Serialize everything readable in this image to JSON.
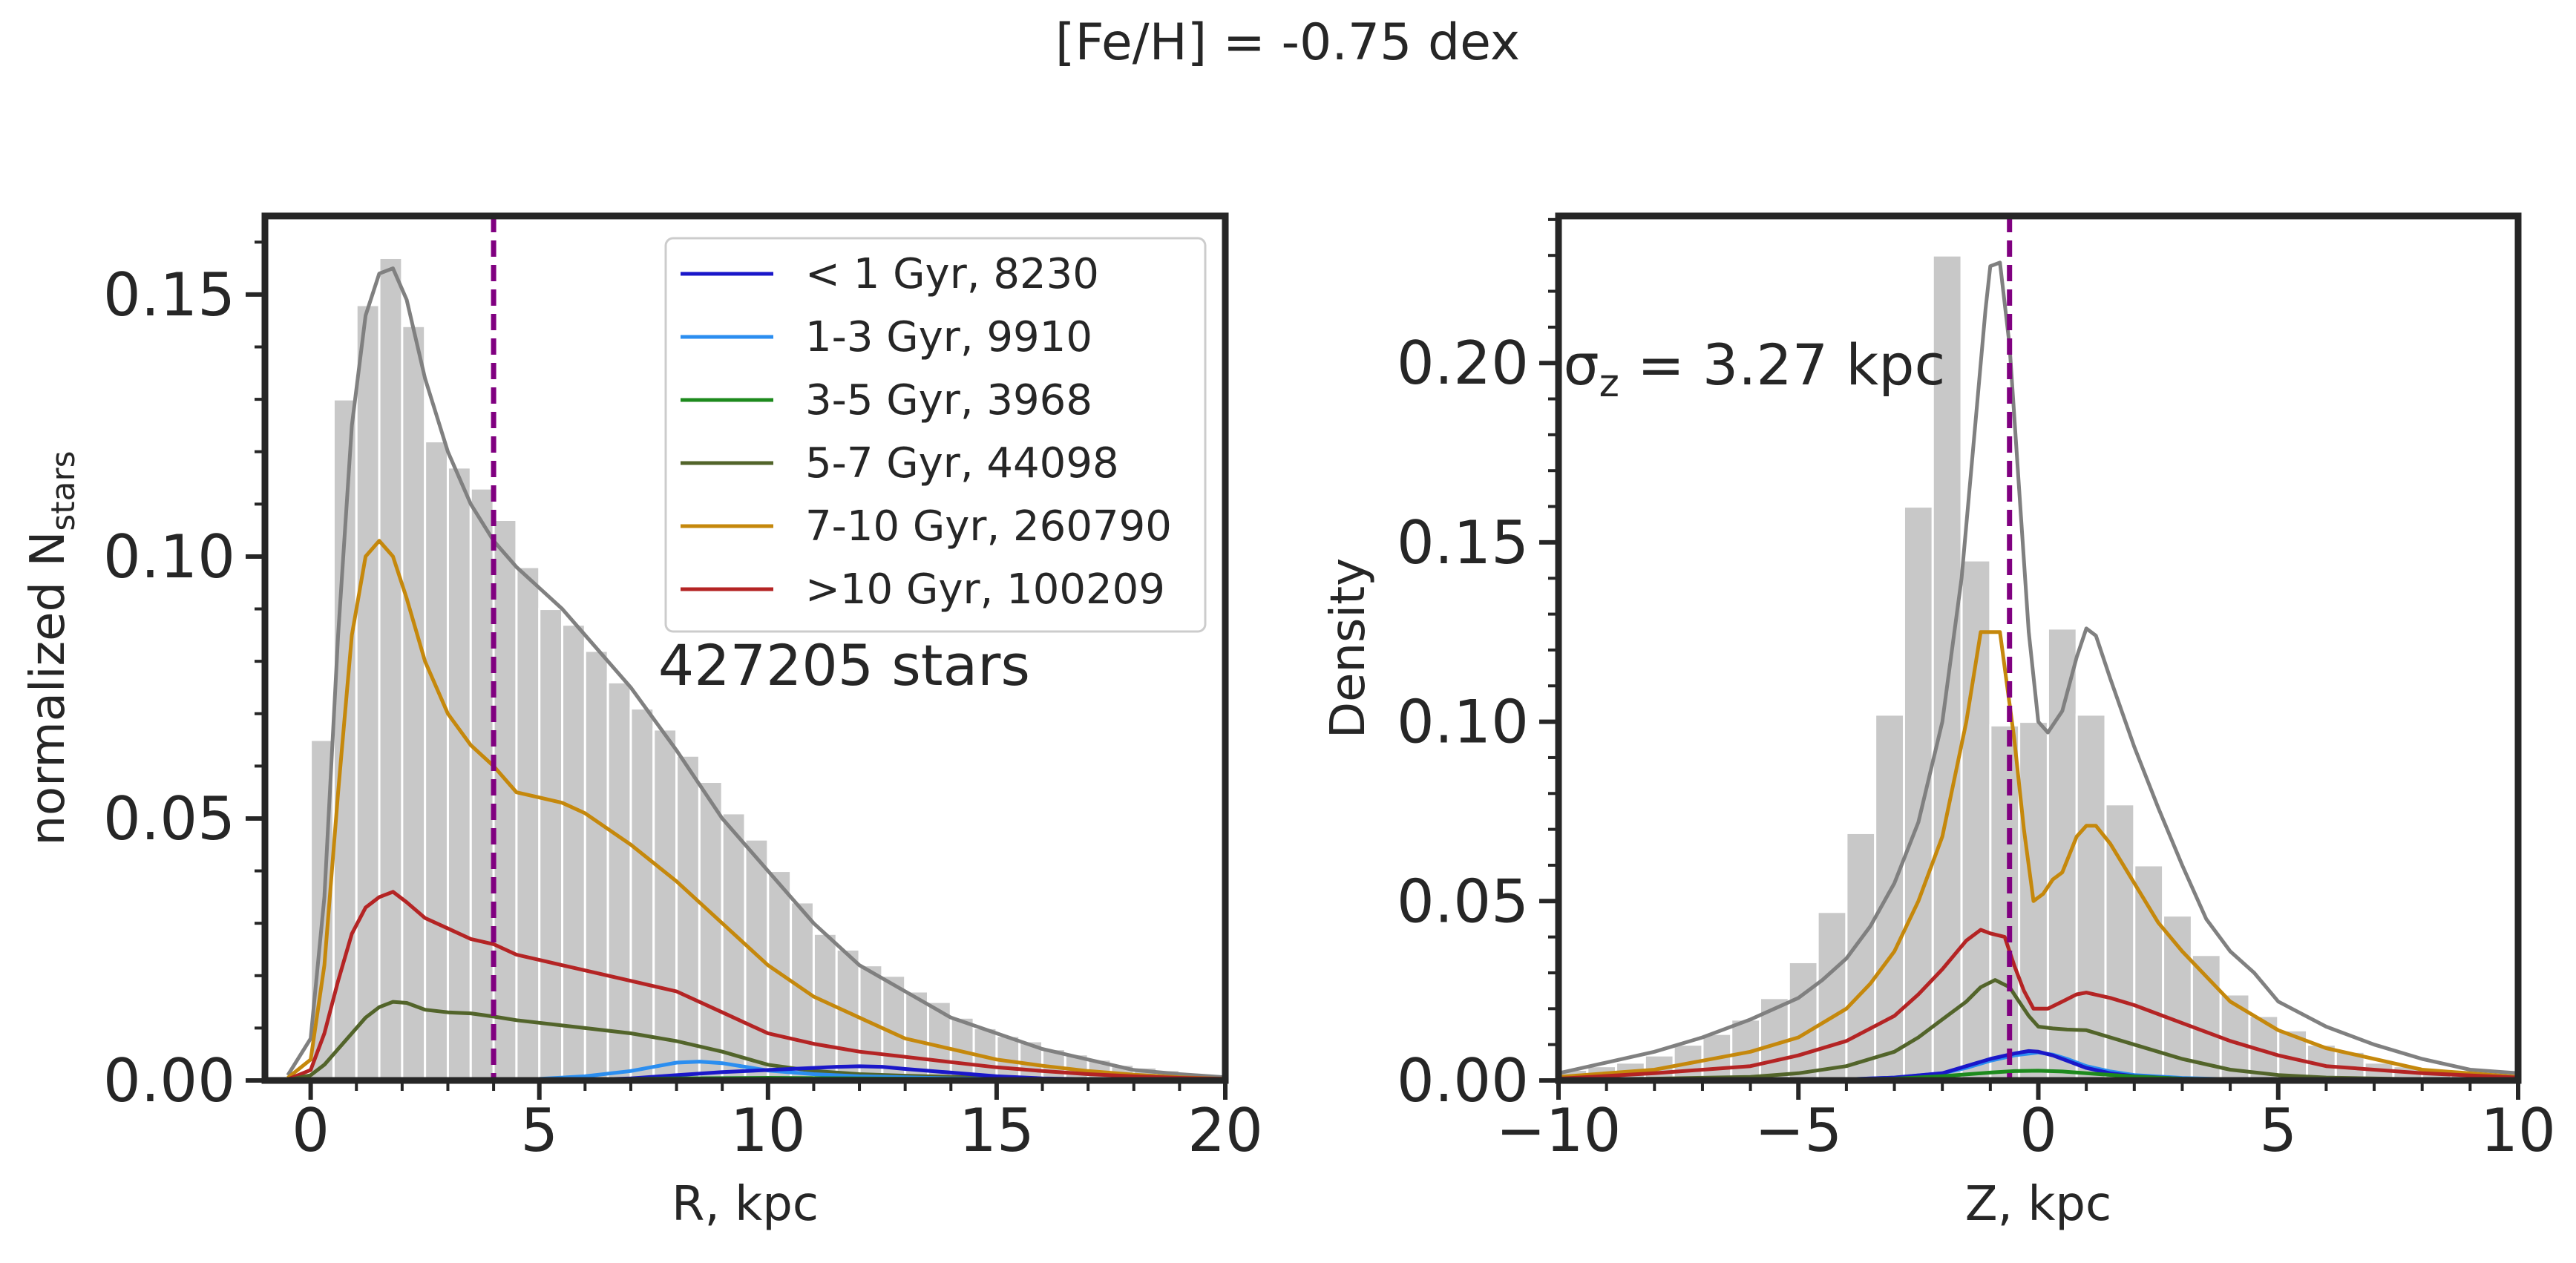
{
  "figure": {
    "suptitle": "[Fe/H] = -0.75 dex"
  },
  "chart_data": [
    {
      "type": "histogram",
      "xlabel": "R, kpc",
      "ylabel_main": "normalized N",
      "ylabel_sub": "stars",
      "xlim": [
        -1,
        20
      ],
      "ylim": [
        0,
        0.165
      ],
      "xticks": [
        0,
        5,
        10,
        15,
        20
      ],
      "yticks": [
        0.0,
        0.05,
        0.1,
        0.15
      ],
      "ytick_labels": [
        "0.00",
        "0.05",
        "0.10",
        "0.15"
      ],
      "xminor": [
        1,
        2,
        3,
        4,
        6,
        7,
        8,
        9,
        11,
        12,
        13,
        14,
        16,
        17,
        18,
        19
      ],
      "yminor": [
        0.01,
        0.02,
        0.03,
        0.04,
        0.06,
        0.07,
        0.08,
        0.09,
        0.11,
        0.12,
        0.13,
        0.14,
        0.16
      ],
      "vline": 4.0,
      "annotation": "427205 stars",
      "annotation_at": [
        7.6,
        0.0755
      ],
      "bin_edges": [
        0,
        0.5,
        1.0,
        1.5,
        2.0,
        2.5,
        3.0,
        3.5,
        4.0,
        4.5,
        5.0,
        5.5,
        6.0,
        6.5,
        7.0,
        7.5,
        8.0,
        8.5,
        9.0,
        9.5,
        10.0,
        10.5,
        11.0,
        11.5,
        12.0,
        12.5,
        13.0,
        13.5,
        14.0,
        14.5,
        15.0,
        15.5,
        16.0,
        16.5,
        17.0,
        17.5,
        18.0,
        18.5,
        19.0,
        19.5,
        20.0
      ],
      "hist_values": [
        0.065,
        0.13,
        0.148,
        0.157,
        0.144,
        0.122,
        0.117,
        0.113,
        0.107,
        0.098,
        0.09,
        0.087,
        0.082,
        0.076,
        0.071,
        0.067,
        0.062,
        0.057,
        0.051,
        0.046,
        0.04,
        0.034,
        0.028,
        0.025,
        0.022,
        0.02,
        0.017,
        0.015,
        0.012,
        0.01,
        0.0085,
        0.0075,
        0.006,
        0.005,
        0.004,
        0.003,
        0.0025,
        0.002,
        0.0015,
        0.001
      ],
      "legend": {
        "placement": "top-right",
        "entries": [
          {
            "label": "< 1 Gyr, 8230",
            "color": "#1a17c9"
          },
          {
            "label": "1-3 Gyr, 9910",
            "color": "#2b8ef0"
          },
          {
            "label": "3-5 Gyr, 3968",
            "color": "#1d8a1d"
          },
          {
            "label": "5-7 Gyr, 44098",
            "color": "#52642a"
          },
          {
            "label": "7-10 Gyr, 260790",
            "color": "#c5880c"
          },
          {
            "label": ">10 Gyr, 100209",
            "color": "#b42424"
          }
        ]
      },
      "series": [
        {
          "name": "all",
          "color": "#808080",
          "x": [
            -0.5,
            0,
            0.3,
            0.6,
            0.9,
            1.2,
            1.5,
            1.8,
            2.1,
            2.5,
            3.0,
            3.5,
            4.0,
            4.5,
            5.0,
            5.5,
            6.0,
            7.0,
            8.0,
            9.0,
            10.0,
            11.0,
            12.0,
            13.0,
            14.0,
            15.0,
            16.0,
            17.0,
            18.0,
            19.0,
            20.0
          ],
          "y": [
            0.001,
            0.008,
            0.035,
            0.085,
            0.125,
            0.146,
            0.154,
            0.155,
            0.149,
            0.134,
            0.12,
            0.11,
            0.103,
            0.098,
            0.094,
            0.09,
            0.085,
            0.075,
            0.063,
            0.05,
            0.04,
            0.03,
            0.022,
            0.017,
            0.012,
            0.009,
            0.006,
            0.004,
            0.002,
            0.0012,
            0.0006
          ]
        },
        {
          "name": "7-10 Gyr",
          "color": "#c5880c",
          "x": [
            -0.5,
            0,
            0.3,
            0.6,
            0.9,
            1.2,
            1.5,
            1.8,
            2.1,
            2.5,
            3.0,
            3.5,
            4.0,
            4.5,
            5.0,
            5.5,
            6.0,
            7.0,
            8.0,
            9.0,
            10.0,
            11.0,
            12.0,
            13.0,
            14.0,
            15.0,
            16.0,
            17.0,
            18.0,
            19.0,
            20.0
          ],
          "y": [
            0.0005,
            0.004,
            0.022,
            0.055,
            0.085,
            0.1,
            0.103,
            0.1,
            0.092,
            0.08,
            0.07,
            0.064,
            0.06,
            0.055,
            0.054,
            0.053,
            0.051,
            0.045,
            0.038,
            0.03,
            0.022,
            0.016,
            0.012,
            0.008,
            0.006,
            0.004,
            0.0028,
            0.0018,
            0.0011,
            0.0006,
            0.0003
          ]
        },
        {
          "name": ">10 Gyr",
          "color": "#b42424",
          "x": [
            -0.5,
            0,
            0.3,
            0.6,
            0.9,
            1.2,
            1.5,
            1.8,
            2.1,
            2.5,
            3.0,
            3.5,
            4.0,
            4.5,
            5.0,
            5.5,
            6.0,
            7.0,
            8.0,
            9.0,
            10.0,
            11.0,
            12.0,
            13.0,
            14.0,
            15.0,
            16.0,
            17.0,
            18.0,
            19.0,
            20.0
          ],
          "y": [
            0.0002,
            0.002,
            0.009,
            0.019,
            0.028,
            0.033,
            0.035,
            0.036,
            0.034,
            0.031,
            0.029,
            0.027,
            0.026,
            0.024,
            0.023,
            0.022,
            0.021,
            0.019,
            0.017,
            0.013,
            0.009,
            0.007,
            0.0055,
            0.0045,
            0.0035,
            0.0025,
            0.0018,
            0.0012,
            0.0008,
            0.0005,
            0.0003
          ]
        },
        {
          "name": "5-7 Gyr",
          "color": "#52642a",
          "x": [
            -0.5,
            0,
            0.3,
            0.6,
            0.9,
            1.2,
            1.5,
            1.8,
            2.1,
            2.5,
            3.0,
            3.5,
            4.0,
            4.5,
            5.0,
            5.5,
            6.0,
            7.0,
            8.0,
            9.0,
            10.0,
            11.0,
            12.0,
            13.0,
            14.0,
            15.0,
            16.0,
            17.0,
            18.0,
            19.0,
            20.0
          ],
          "y": [
            0.0001,
            0.001,
            0.003,
            0.006,
            0.009,
            0.012,
            0.014,
            0.015,
            0.0148,
            0.0135,
            0.013,
            0.0128,
            0.0122,
            0.0115,
            0.011,
            0.0105,
            0.01,
            0.009,
            0.0075,
            0.0055,
            0.003,
            0.0018,
            0.0012,
            0.0009,
            0.0007,
            0.0005,
            0.0003,
            0.0002,
            0.0001,
            0.0001,
            0.0001
          ]
        },
        {
          "name": "1-3 Gyr",
          "color": "#2b8ef0",
          "x": [
            -0.5,
            0,
            2,
            4,
            5,
            6,
            7,
            7.5,
            8,
            8.5,
            9,
            9.5,
            10,
            11,
            12,
            13,
            14,
            15,
            16,
            18,
            20
          ],
          "y": [
            0,
            0,
            0,
            0.0001,
            0.0003,
            0.0008,
            0.0018,
            0.0026,
            0.0034,
            0.0036,
            0.0033,
            0.0026,
            0.0019,
            0.0012,
            0.0008,
            0.0006,
            0.0004,
            0.0003,
            0.0002,
            0.0001,
            0
          ]
        },
        {
          "name": "< 1 Gyr",
          "color": "#1a17c9",
          "x": [
            -0.5,
            0,
            4,
            6,
            7,
            8,
            9,
            10,
            10.5,
            11,
            11.5,
            12,
            12.5,
            13,
            14,
            15,
            16,
            18,
            20
          ],
          "y": [
            0,
            0,
            0,
            0.0001,
            0.0004,
            0.001,
            0.0016,
            0.002,
            0.0022,
            0.0024,
            0.0026,
            0.0027,
            0.0026,
            0.0022,
            0.0015,
            0.0008,
            0.0004,
            0.0001,
            0
          ]
        },
        {
          "name": "3-5 Gyr",
          "color": "#1d8a1d",
          "x": [
            -0.5,
            0,
            4,
            6,
            8,
            10,
            12,
            14,
            16,
            18,
            20
          ],
          "y": [
            0,
            0,
            0.0001,
            0.0002,
            0.0004,
            0.0005,
            0.0004,
            0.0003,
            0.0002,
            0.0001,
            0
          ]
        }
      ]
    },
    {
      "type": "histogram",
      "xlabel": "Z, kpc",
      "ylabel_main": "Density",
      "ylabel_sub": "",
      "xlim": [
        -10,
        10
      ],
      "ylim": [
        0,
        0.241
      ],
      "xticks": [
        -10,
        -5,
        0,
        5,
        10
      ],
      "xtick_labels": [
        "−10",
        "−5",
        "0",
        "5",
        "10"
      ],
      "yticks": [
        0.0,
        0.05,
        0.1,
        0.15,
        0.2
      ],
      "ytick_labels": [
        "0.00",
        "0.05",
        "0.10",
        "0.15",
        "0.20"
      ],
      "xminor": [
        -9,
        -8,
        -7,
        -6,
        -4,
        -3,
        -2,
        -1,
        1,
        2,
        3,
        4,
        6,
        7,
        8,
        9
      ],
      "yminor": [
        0.01,
        0.02,
        0.03,
        0.04,
        0.06,
        0.07,
        0.08,
        0.09,
        0.11,
        0.12,
        0.13,
        0.14,
        0.16,
        0.17,
        0.18,
        0.19,
        0.21,
        0.22,
        0.23,
        0.24
      ],
      "vline": -0.6,
      "annotation_main": "σ",
      "annotation_sub": "z",
      "annotation_rest": " = 3.27 kpc",
      "annotation_at": [
        -9.9,
        0.194
      ],
      "bin_edges": [
        -10,
        -9.4,
        -8.8,
        -8.2,
        -7.6,
        -7.0,
        -6.4,
        -5.8,
        -5.2,
        -4.6,
        -4.0,
        -3.4,
        -2.8,
        -2.2,
        -1.6,
        -1.0,
        -0.4,
        0.2,
        0.8,
        1.4,
        2.0,
        2.6,
        3.2,
        3.8,
        4.4,
        5.0,
        5.6,
        6.2,
        6.8,
        7.4,
        8.0,
        8.6,
        9.2,
        9.8,
        10.4
      ],
      "hist_values": [
        0.003,
        0.004,
        0.005,
        0.007,
        0.01,
        0.013,
        0.017,
        0.023,
        0.033,
        0.047,
        0.069,
        0.102,
        0.16,
        0.23,
        0.145,
        0.099,
        0.1,
        0.126,
        0.102,
        0.077,
        0.06,
        0.046,
        0.035,
        0.024,
        0.018,
        0.014,
        0.01,
        0.008,
        0.005,
        0.004,
        0.003,
        0.002,
        0.001,
        0.001
      ],
      "series": [
        {
          "name": "all",
          "color": "#808080",
          "x": [
            -10,
            -9,
            -8,
            -7,
            -6,
            -5,
            -4.5,
            -4,
            -3.5,
            -3,
            -2.5,
            -2,
            -1.6,
            -1.3,
            -1.1,
            -1.0,
            -0.8,
            -0.6,
            -0.4,
            -0.2,
            0,
            0.2,
            0.5,
            0.8,
            1.0,
            1.2,
            1.5,
            2,
            2.5,
            3,
            3.5,
            4,
            4.5,
            5,
            6,
            7,
            8,
            9,
            10
          ],
          "y": [
            0.002,
            0.005,
            0.008,
            0.012,
            0.017,
            0.023,
            0.028,
            0.034,
            0.043,
            0.055,
            0.072,
            0.1,
            0.14,
            0.185,
            0.215,
            0.227,
            0.228,
            0.205,
            0.165,
            0.125,
            0.1,
            0.097,
            0.103,
            0.118,
            0.126,
            0.124,
            0.112,
            0.093,
            0.076,
            0.06,
            0.045,
            0.036,
            0.03,
            0.022,
            0.015,
            0.01,
            0.006,
            0.003,
            0.002
          ]
        },
        {
          "name": "7-10 Gyr",
          "color": "#c5880c",
          "x": [
            -10,
            -8,
            -6,
            -5,
            -4,
            -3.5,
            -3,
            -2.5,
            -2,
            -1.5,
            -1.2,
            -0.8,
            -0.5,
            -0.3,
            -0.1,
            0.1,
            0.3,
            0.5,
            0.8,
            1.0,
            1.2,
            1.5,
            2,
            2.5,
            3,
            4,
            5,
            6,
            7,
            8,
            10
          ],
          "y": [
            0.001,
            0.003,
            0.008,
            0.012,
            0.02,
            0.027,
            0.036,
            0.05,
            0.068,
            0.1,
            0.125,
            0.125,
            0.095,
            0.07,
            0.05,
            0.052,
            0.056,
            0.058,
            0.068,
            0.071,
            0.071,
            0.066,
            0.055,
            0.044,
            0.036,
            0.022,
            0.014,
            0.009,
            0.006,
            0.003,
            0.001
          ]
        },
        {
          "name": ">10 Gyr",
          "color": "#b42424",
          "x": [
            -10,
            -8,
            -6,
            -5,
            -4,
            -3,
            -2.5,
            -2,
            -1.5,
            -1.2,
            -1.0,
            -0.7,
            -0.5,
            -0.3,
            -0.1,
            0.2,
            0.5,
            0.8,
            1.0,
            1.5,
            2,
            3,
            4,
            5,
            6,
            8,
            10
          ],
          "y": [
            0.0005,
            0.002,
            0.004,
            0.007,
            0.011,
            0.018,
            0.024,
            0.031,
            0.039,
            0.042,
            0.041,
            0.04,
            0.032,
            0.025,
            0.02,
            0.02,
            0.022,
            0.024,
            0.0245,
            0.023,
            0.021,
            0.016,
            0.011,
            0.007,
            0.004,
            0.002,
            0.0008
          ]
        },
        {
          "name": "5-7 Gyr",
          "color": "#52642a",
          "x": [
            -10,
            -8,
            -6,
            -5,
            -4,
            -3,
            -2.5,
            -2,
            -1.5,
            -1.2,
            -0.9,
            -0.6,
            -0.4,
            -0.2,
            0,
            0.3,
            0.6,
            1.0,
            1.5,
            2,
            3,
            4,
            5,
            6,
            8,
            10
          ],
          "y": [
            0.0002,
            0.0005,
            0.001,
            0.002,
            0.004,
            0.008,
            0.012,
            0.017,
            0.022,
            0.026,
            0.028,
            0.026,
            0.022,
            0.018,
            0.015,
            0.0145,
            0.0142,
            0.014,
            0.012,
            0.01,
            0.006,
            0.003,
            0.0015,
            0.0008,
            0.0003,
            0.0001
          ]
        },
        {
          "name": "1-3 Gyr",
          "color": "#2b8ef0",
          "x": [
            -10,
            -5,
            -4,
            -3,
            -2,
            -1.5,
            -1,
            -0.5,
            0,
            0.3,
            0.6,
            1,
            1.5,
            2,
            3,
            4,
            5,
            10
          ],
          "y": [
            0,
            0.0001,
            0.0003,
            0.0008,
            0.002,
            0.0035,
            0.0055,
            0.007,
            0.0078,
            0.0072,
            0.006,
            0.004,
            0.0025,
            0.0015,
            0.0007,
            0.0003,
            0.0001,
            0
          ]
        },
        {
          "name": "< 1 Gyr",
          "color": "#1a17c9",
          "x": [
            -10,
            -5,
            -4,
            -3,
            -2,
            -1.5,
            -1,
            -0.5,
            -0.2,
            0,
            0.3,
            0.6,
            1,
            1.5,
            2,
            3,
            4,
            5,
            10
          ],
          "y": [
            0,
            0.0001,
            0.0003,
            0.0008,
            0.002,
            0.004,
            0.006,
            0.0075,
            0.0082,
            0.008,
            0.007,
            0.0055,
            0.0035,
            0.002,
            0.0012,
            0.0005,
            0.0002,
            0.0001,
            0
          ]
        },
        {
          "name": "3-5 Gyr",
          "color": "#1d8a1d",
          "x": [
            -10,
            -5,
            -3,
            -2,
            -1,
            -0.5,
            0,
            0.5,
            1,
            2,
            3,
            5,
            10
          ],
          "y": [
            0,
            0.0001,
            0.0005,
            0.0012,
            0.0022,
            0.0026,
            0.0027,
            0.0025,
            0.002,
            0.0011,
            0.0005,
            0.0001,
            0
          ]
        }
      ]
    }
  ]
}
